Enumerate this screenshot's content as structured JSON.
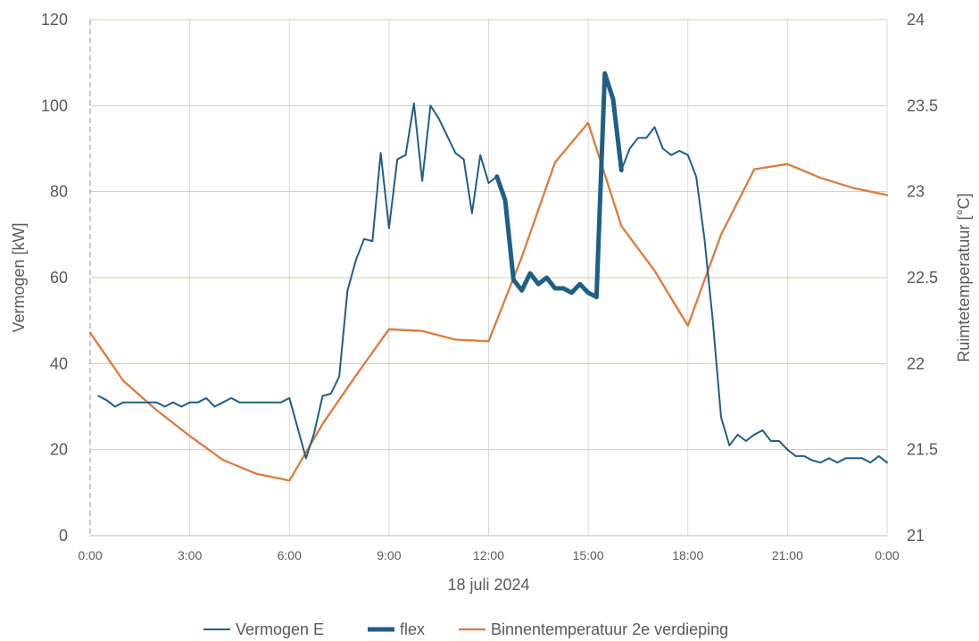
{
  "chart_data": {
    "type": "line",
    "xlabel": "18 juli 2024",
    "ylabel_left": "Vermogen [kW]",
    "ylabel_right": "Ruimtetemperatuur [°C]",
    "x_ticks": [
      "0:00",
      "3:00",
      "6:00",
      "9:00",
      "12:00",
      "15:00",
      "18:00",
      "21:00",
      "0:00"
    ],
    "y_left_ticks": [
      "0",
      "20",
      "40",
      "60",
      "80",
      "100",
      "120"
    ],
    "y_right_ticks": [
      "21",
      "21.5",
      "22",
      "22.5",
      "23",
      "23.5",
      "24"
    ],
    "ylim_left": [
      0,
      120
    ],
    "ylim_right": [
      21,
      24
    ],
    "xlim_hours": [
      0,
      24
    ],
    "grid": true,
    "legend_position": "bottom",
    "colors": {
      "power": "#1f5f86",
      "flex": "#1f5f86",
      "temperature": "#e07a3a",
      "grid_vertical": "#d9d9d9",
      "grid_horizontal": "#c5d98a",
      "axis_text": "#595959"
    },
    "series": [
      {
        "name": "Vermogen E",
        "axis": "left",
        "x_hours": [
          0.25,
          0.5,
          0.75,
          1.0,
          1.25,
          1.5,
          1.75,
          2.0,
          2.25,
          2.5,
          2.75,
          3.0,
          3.25,
          3.5,
          3.75,
          4.0,
          4.25,
          4.5,
          4.75,
          5.0,
          5.25,
          5.5,
          5.75,
          6.0,
          6.25,
          6.5,
          6.75,
          7.0,
          7.25,
          7.5,
          7.75,
          8.0,
          8.25,
          8.5,
          8.75,
          9.0,
          9.25,
          9.5,
          9.75,
          10.0,
          10.25,
          10.5,
          10.75,
          11.0,
          11.25,
          11.5,
          11.75,
          12.0,
          12.25,
          12.5,
          12.75,
          13.0,
          13.25,
          13.5,
          13.75,
          14.0,
          14.25,
          14.5,
          14.75,
          15.0,
          15.25,
          15.5,
          15.75,
          16.0,
          16.25,
          16.5,
          16.75,
          17.0,
          17.25,
          17.5,
          17.75,
          18.0,
          18.25,
          18.5,
          18.75,
          19.0,
          19.25,
          19.5,
          19.75,
          20.0,
          20.25,
          20.5,
          20.75,
          21.0,
          21.25,
          21.5,
          21.75,
          22.0,
          22.25,
          22.5,
          22.75,
          23.0,
          23.25,
          23.5,
          23.75,
          24.0
        ],
        "values": [
          32.5,
          31.5,
          30,
          31,
          31,
          31,
          31,
          31,
          30,
          31,
          30,
          31,
          31,
          32,
          30,
          31,
          32,
          31,
          31,
          31,
          31,
          31,
          31,
          32,
          25,
          18,
          24,
          32.5,
          33,
          37,
          57,
          64,
          69,
          68.5,
          89,
          71.5,
          87.5,
          88.5,
          100.5,
          82.5,
          100,
          97,
          93,
          89,
          87.5,
          75,
          88.5,
          82,
          83.5,
          78,
          59.5,
          57,
          61,
          58.5,
          60,
          57.5,
          57.5,
          56.5,
          58.5,
          56.5,
          55.5,
          107.5,
          101.5,
          85,
          90,
          92.5,
          92.5,
          95,
          90,
          88.5,
          89.5,
          88.5,
          83.5,
          69,
          50,
          27.5,
          21,
          23.5,
          22,
          23.5,
          24.5,
          22,
          22,
          20,
          18.5,
          18.5,
          17.5,
          17,
          18,
          17,
          18,
          18,
          18,
          17,
          18.5,
          17
        ]
      },
      {
        "name": "flex",
        "axis": "left",
        "x_hours": [
          12.25,
          12.5,
          12.75,
          13.0,
          13.25,
          13.5,
          13.75,
          14.0,
          14.25,
          14.5,
          14.75,
          15.0,
          15.25,
          15.5,
          15.75,
          16.0
        ],
        "values": [
          83.5,
          78,
          59.5,
          57,
          61,
          58.5,
          60,
          57.5,
          57.5,
          56.5,
          58.5,
          56.5,
          55.5,
          107.5,
          101.5,
          85
        ]
      },
      {
        "name": "Binnentemperatuur 2e verdieping",
        "axis": "right",
        "x_hours": [
          0,
          1,
          2,
          3,
          4,
          5,
          6,
          7,
          8,
          9,
          10,
          11,
          12,
          13,
          14,
          15,
          16,
          17,
          18,
          19,
          20,
          21,
          22,
          23,
          24
        ],
        "values": [
          22.18,
          21.9,
          21.73,
          21.58,
          21.44,
          21.36,
          21.32,
          21.65,
          21.93,
          22.2,
          22.19,
          22.14,
          22.13,
          22.62,
          23.17,
          23.4,
          22.8,
          22.54,
          22.22,
          22.75,
          23.13,
          23.16,
          23.08,
          23.02,
          22.98
        ]
      }
    ]
  }
}
